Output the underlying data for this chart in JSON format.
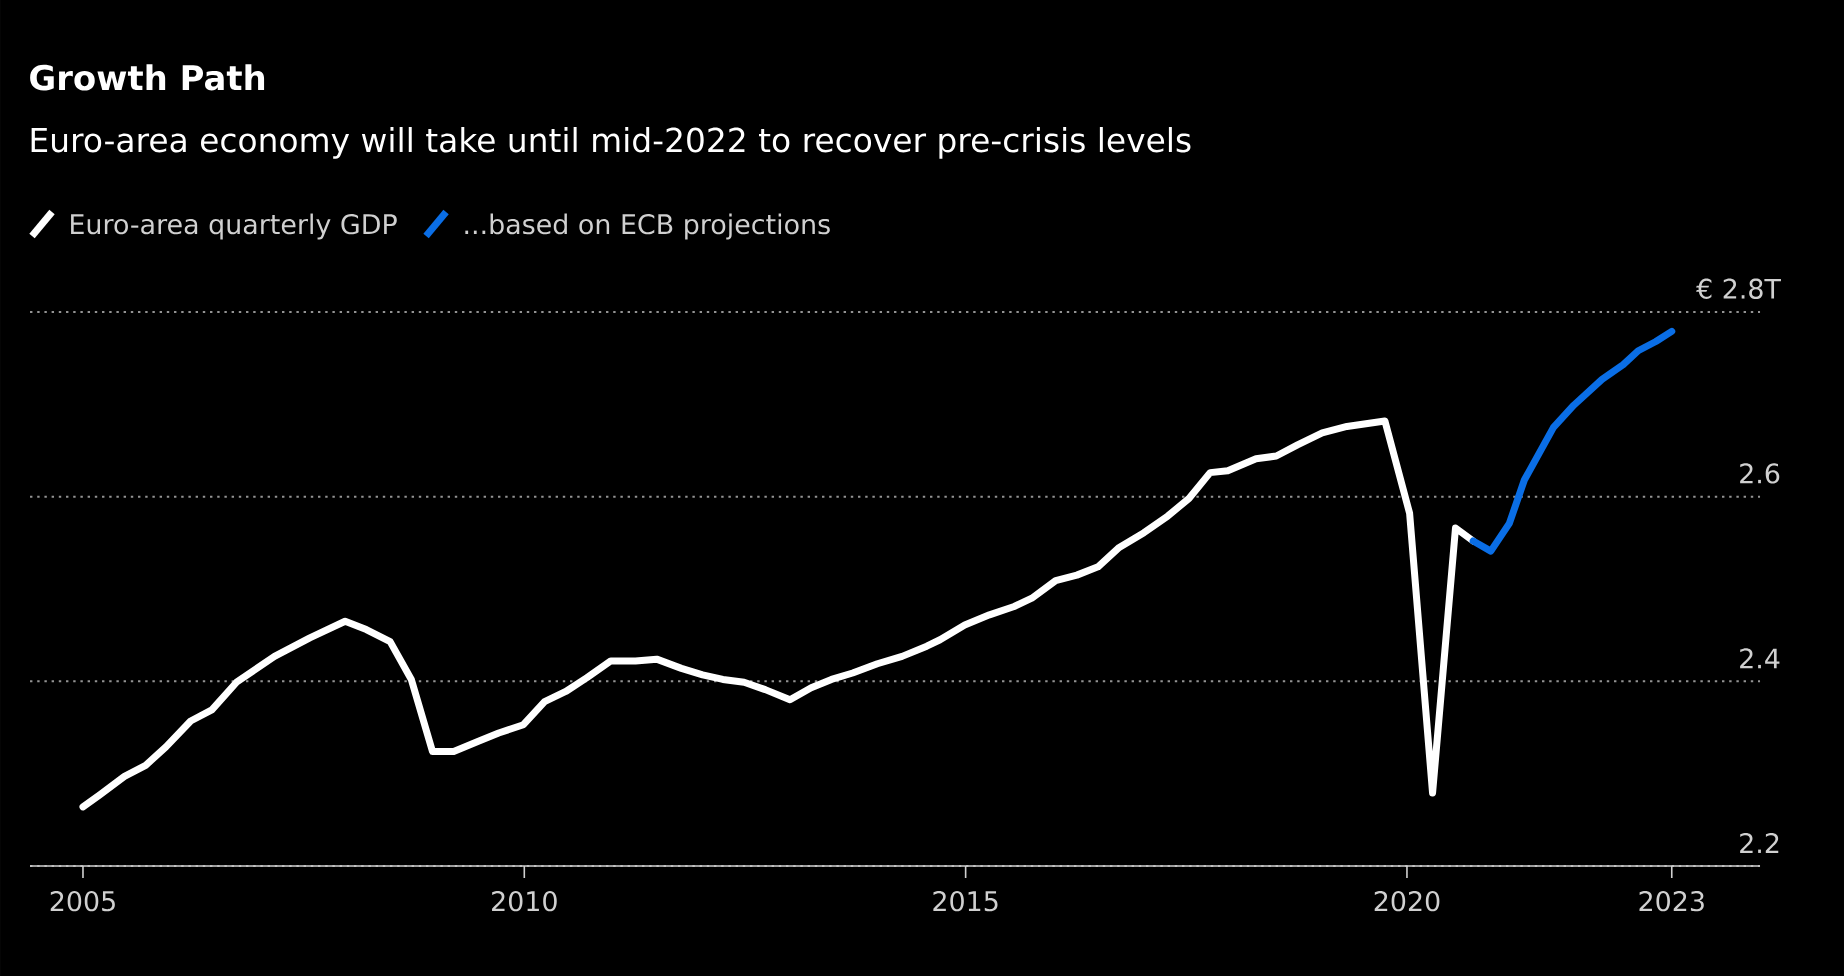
{
  "chart_data": {
    "type": "line",
    "title": "Growth Path",
    "subtitle": "Euro-area economy will take until mid-2022 to recover pre-crisis levels",
    "xlim": [
      2004.4,
      2024.0
    ],
    "xticks": [
      2005,
      2010,
      2015,
      2020,
      2023
    ],
    "ylim": [
      2.2,
      2.8
    ],
    "yticks": [
      2.2,
      2.4,
      2.6,
      {
        "value": 2.8,
        "label": "€ 2.8T"
      }
    ],
    "grid": "y",
    "legend": "top",
    "marker": "none",
    "line_style": "solid",
    "series": [
      {
        "name": "Euro-area quarterly GDP",
        "color": "#ffffff",
        "x": [
          2005.0,
          2005.19,
          2005.47,
          2005.71,
          2005.94,
          2006.22,
          2006.46,
          2006.74,
          2007.17,
          2007.57,
          2007.97,
          2008.21,
          2008.48,
          2008.72,
          2008.96,
          2009.2,
          2009.48,
          2009.71,
          2009.99,
          2010.23,
          2010.47,
          2010.71,
          2010.98,
          2011.26,
          2011.5,
          2011.78,
          2012.02,
          2012.25,
          2012.49,
          2012.73,
          2013.01,
          2013.25,
          2013.48,
          2013.72,
          2014.0,
          2014.28,
          2014.56,
          2014.71,
          2014.99,
          2015.27,
          2015.55,
          2015.75,
          2016.02,
          2016.26,
          2016.5,
          2016.74,
          2017.02,
          2017.29,
          2017.53,
          2017.77,
          2017.97,
          2018.29,
          2018.52,
          2018.76,
          2019.04,
          2019.32,
          2019.75,
          2020.03,
          2020.29,
          2020.55,
          2020.75
        ],
        "values": [
          2.264,
          2.277,
          2.297,
          2.309,
          2.329,
          2.357,
          2.369,
          2.399,
          2.427,
          2.447,
          2.465,
          2.456,
          2.443,
          2.402,
          2.324,
          2.324,
          2.335,
          2.344,
          2.353,
          2.378,
          2.389,
          2.404,
          2.422,
          2.422,
          2.424,
          2.414,
          2.407,
          2.402,
          2.399,
          2.391,
          2.38,
          2.393,
          2.402,
          2.409,
          2.419,
          2.427,
          2.438,
          2.445,
          2.461,
          2.472,
          2.481,
          2.49,
          2.509,
          2.515,
          2.524,
          2.545,
          2.561,
          2.579,
          2.598,
          2.626,
          2.628,
          2.641,
          2.644,
          2.656,
          2.669,
          2.676,
          2.682,
          2.582,
          2.279,
          2.566,
          2.552
        ]
      },
      {
        "name": "...based on ECB projections",
        "color": "#0a6ee6",
        "x": [
          2020.75,
          2020.95,
          2021.16,
          2021.33,
          2021.66,
          2021.89,
          2022.21,
          2022.45,
          2022.62,
          2022.82,
          2023.0
        ],
        "values": [
          2.552,
          2.541,
          2.571,
          2.618,
          2.675,
          2.699,
          2.727,
          2.743,
          2.758,
          2.768,
          2.779
        ]
      }
    ]
  }
}
